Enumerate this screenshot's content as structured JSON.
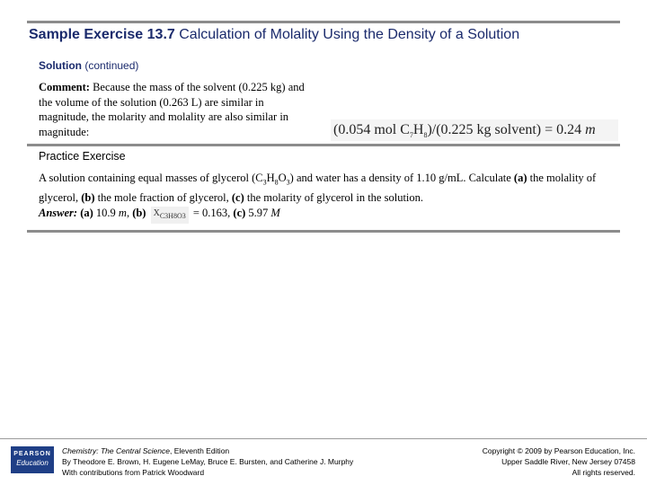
{
  "header": {
    "title_bold": "Sample Exercise 13.7",
    "title_rest": "Calculation of Molality Using the Density of a Solution"
  },
  "solution": {
    "label_bold": "Solution",
    "label_rest": "(continued)"
  },
  "comment": {
    "label": "Comment:",
    "text": "Because the mass of the solvent (0.225 kg) and the volume of the solution (0.263 L) are similar in magnitude, the molarity and molality are also similar in magnitude:"
  },
  "formula": {
    "part1": "(0.054 mol C",
    "sub1": "7",
    "part2": "H",
    "sub2": "8",
    "part3": ")/(0.225 kg solvent) = 0.24 ",
    "unit": "m"
  },
  "practice": {
    "label": "Practice Exercise",
    "line1_a": "A solution containing equal masses of glycerol (C",
    "line1_s1": "3",
    "line1_b": "H",
    "line1_s2": "8",
    "line1_c": "O",
    "line1_s3": "3",
    "line1_d": ") and water has a density of 1.10 g/mL. Calculate ",
    "a_label": "(a)",
    "line2_a": " the molality of glycerol, ",
    "b_label": "(b)",
    "line2_b": " the mole fraction of glycerol, ",
    "c_label": "(c)",
    "line2_c": " the molarity of glycerol in the solution.",
    "answer_label": "Answer:",
    "ans_a_label": "(a)",
    "ans_a": " 10.9 ",
    "ans_a_unit": "m",
    "ans_b_label": "(b)",
    "chi_symbol": "X",
    "chi_sub": "C3H8O3",
    "ans_b": " = 0.163, ",
    "ans_c_label": "(c)",
    "ans_c": " 5.97 ",
    "ans_c_unit": "M"
  },
  "footer": {
    "logo_line1": "PEARSON",
    "logo_line2": "Education",
    "book_title": "Chemistry: The Central Science",
    "book_edition": ", Eleventh Edition",
    "authors": "By Theodore E. Brown, H. Eugene LeMay, Bruce E. Bursten, and Catherine J. Murphy",
    "contrib": "With contributions from Patrick Woodward",
    "copyright": "Copyright © 2009 by Pearson Education, Inc.",
    "address": "Upper Saddle River, New Jersey 07458",
    "rights": "All rights reserved."
  },
  "colors": {
    "title": "#1a2a6c",
    "rule": "#8c8c8c",
    "logo_bg": "#1f3f86"
  }
}
